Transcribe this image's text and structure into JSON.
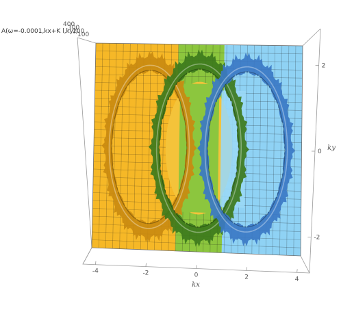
{
  "chart_data": {
    "type": "surface3d",
    "title": "",
    "z_label": "A(ω=-0.0001,kx+K l,ky))",
    "x_label": "kx",
    "y_label": "ky",
    "x_range": [
      -4.5,
      4.5
    ],
    "y_range": [
      -2.5,
      2.5
    ],
    "x_ticks": [
      "-4",
      "-2",
      "0",
      "2",
      "4"
    ],
    "y_ticks": [
      "2",
      "0",
      "-2"
    ],
    "z_ticks": [
      "400",
      "300",
      "200",
      "100"
    ],
    "grid": true,
    "regions": [
      {
        "name": "left",
        "x_from": -4.5,
        "x_to": -0.9,
        "color": "#f6b827"
      },
      {
        "name": "middle",
        "x_from": -0.9,
        "x_to": 1.1,
        "color": "#8cc63e"
      },
      {
        "name": "right",
        "x_from": 1.1,
        "x_to": 4.5,
        "color": "#8fd2f4"
      }
    ],
    "rings": [
      {
        "center_kx": -2.1,
        "center_ky": 0.0,
        "radius_kx": 1.75,
        "radius_ky": 2.0,
        "color": "#c98a10"
      },
      {
        "center_kx": 0.05,
        "center_ky": 0.0,
        "radius_kx": 1.85,
        "radius_ky": 2.05,
        "color": "#3d7a1c"
      },
      {
        "center_kx": 2.1,
        "center_ky": 0.0,
        "radius_kx": 1.8,
        "radius_ky": 2.0,
        "color": "#3b78c4"
      }
    ]
  }
}
